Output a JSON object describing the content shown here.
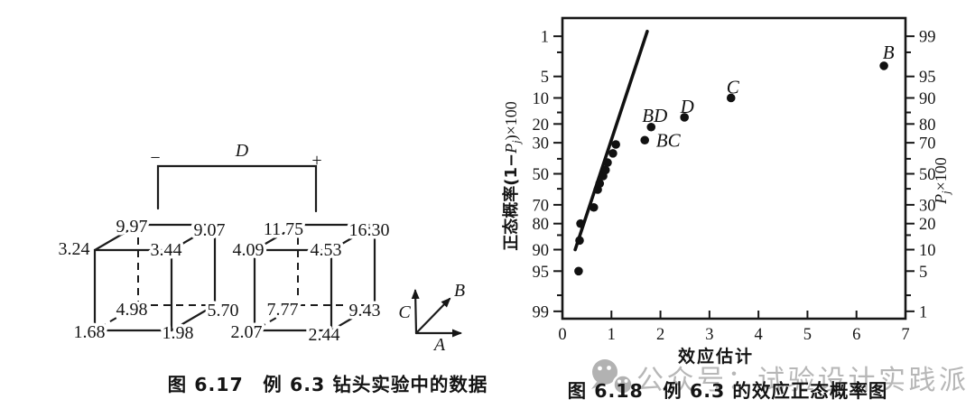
{
  "page": {
    "background": "#ffffff",
    "ink_color": "#161616",
    "watermark_color": "#b7b7b7"
  },
  "figure_617": {
    "caption": "图 6.17　例 6.3 钻头实验中的数据",
    "bracket": {
      "factor": "D",
      "left_sign": "−",
      "right_sign": "+"
    },
    "axis_triad": {
      "horizontal": "A",
      "diagonal": "B",
      "vertical": "C"
    }
  },
  "figure_618": {
    "caption": "图 6.18　例 6.3 的效应正态概率图"
  },
  "watermark": {
    "text": "公众号：试验设计实践派",
    "icon": "wechat-chat-bubbles"
  },
  "chart_data": [
    {
      "type": "cube-plot",
      "title": "图 6.17　例 6.3 钻头实验中的数据",
      "factor_bracket": {
        "factor": "D",
        "left_sign": "−",
        "right_sign": "+"
      },
      "axes": {
        "horizontal": "A",
        "depth_diagonal": "B",
        "vertical": "C",
        "between_cubes": "D"
      },
      "cubes": [
        {
          "D_level": "−",
          "corners": {
            "front_bottom_left": "1.68",
            "front_bottom_right": "1.98",
            "front_top_left": "3.24",
            "front_top_right": "3.44",
            "back_bottom_left": "4.98",
            "back_bottom_right": "5.70",
            "back_top_left": "9.97",
            "back_top_right": "9.07"
          }
        },
        {
          "D_level": "+",
          "corners": {
            "front_bottom_left": "2.07",
            "front_bottom_right": "2.44",
            "front_top_left": "4.09",
            "front_top_right": "4.53",
            "back_bottom_left": "7.77",
            "back_bottom_right": "9.43",
            "back_top_left": "11.75",
            "back_top_right": "16.30"
          }
        }
      ]
    },
    {
      "type": "scatter",
      "title": "图 6.18　例 6.3 的效应正态概率图",
      "xlabel": "效应估计",
      "ylabel_left": {
        "pre": "正态概率(1−",
        "sym": "P",
        "sub": "j",
        "post": ")×100"
      },
      "ylabel_right": {
        "sym": "P",
        "sub": "j",
        "post": "×100"
      },
      "xlim": [
        0,
        7
      ],
      "x_ticks": [
        0,
        1,
        2,
        3,
        4,
        5,
        6,
        7
      ],
      "y_scale": "normal-probability",
      "y_ticks_left": [
        1,
        5,
        10,
        20,
        30,
        50,
        70,
        80,
        90,
        95,
        99
      ],
      "y_ticks_right": [
        99,
        95,
        90,
        80,
        70,
        50,
        30,
        20,
        10,
        5,
        1
      ],
      "y_minor_ticks": [
        2,
        15,
        40,
        60,
        85,
        98
      ],
      "grid": false,
      "legend": null,
      "points_unlabeled": [
        {
          "x": 0.33,
          "p": 95.0
        },
        {
          "x": 0.35,
          "p": 87.0
        },
        {
          "x": 0.37,
          "p": 80.0
        },
        {
          "x": 0.64,
          "p": 71.5
        },
        {
          "x": 0.72,
          "p": 60.5
        },
        {
          "x": 0.76,
          "p": 56.5
        },
        {
          "x": 0.83,
          "p": 51.5
        },
        {
          "x": 0.88,
          "p": 47.5
        },
        {
          "x": 0.92,
          "p": 42.5
        },
        {
          "x": 1.03,
          "p": 36.5
        },
        {
          "x": 1.09,
          "p": 31.0
        }
      ],
      "points_labeled": [
        {
          "label": "BC",
          "x": 1.68,
          "p": 28.5
        },
        {
          "label": "BD",
          "x": 1.81,
          "p": 21.5
        },
        {
          "label": "D",
          "x": 2.49,
          "p": 17.0
        },
        {
          "label": "C",
          "x": 3.44,
          "p": 10.0
        },
        {
          "label": "B",
          "x": 6.56,
          "p": 3.4
        }
      ],
      "fit_line": {
        "x1": 0.26,
        "p1": 90.0,
        "x2": 1.73,
        "p2": 0.8
      }
    }
  ]
}
